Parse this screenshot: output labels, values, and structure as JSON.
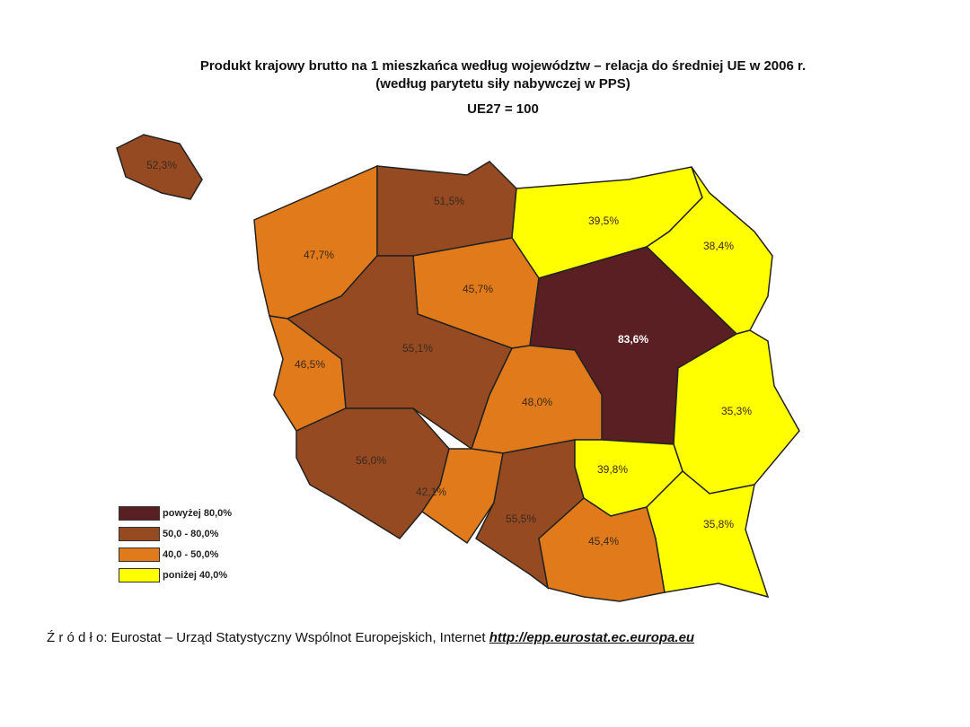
{
  "title": {
    "line1": "Produkt krajowy brutto na 1 mieszkańca według województw – relacja do średniej UE w 2006 r.",
    "line2": "(według parytetu siły nabywczej w PPS)",
    "line3": "UE27 = 100"
  },
  "classes": [
    {
      "label": "powyżej 80,0%",
      "color": "#5a1f22"
    },
    {
      "label": "50,0 - 80,0%",
      "color": "#964a22"
    },
    {
      "label": "40,0 - 50,0%",
      "color": "#e07a1a"
    },
    {
      "label": "poniżej 40,0%",
      "color": "#ffff00"
    }
  ],
  "regions": [
    {
      "value": "47,7%",
      "class": 2
    },
    {
      "value": "51,5%",
      "class": 1
    },
    {
      "value": "39,5%",
      "class": 3
    },
    {
      "value": "38,4%",
      "class": 3
    },
    {
      "value": "45,7%",
      "class": 2
    },
    {
      "value": "55,1%",
      "class": 1
    },
    {
      "value": "46,5%",
      "class": 2
    },
    {
      "value": "83,6%",
      "class": 0
    },
    {
      "value": "48,0%",
      "class": 2
    },
    {
      "value": "35,3%",
      "class": 3
    },
    {
      "value": "56,0%",
      "class": 1
    },
    {
      "value": "42,1%",
      "class": 2
    },
    {
      "value": "55,5%",
      "class": 1
    },
    {
      "value": "39,8%",
      "class": 3
    },
    {
      "value": "45,4%",
      "class": 2
    },
    {
      "value": "35,8%",
      "class": 3
    }
  ],
  "inset": {
    "value": "52,3%",
    "class": 1
  },
  "source": {
    "text": "Ź r ó d ł o: Eurostat – Urząd Statystyczny Wspólnot Europejskich, Internet ",
    "link": "http://epp.eurostat.ec.europa.eu"
  }
}
